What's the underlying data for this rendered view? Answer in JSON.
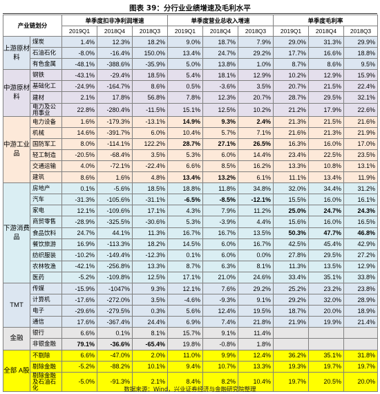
{
  "title": "图表 39：分行业业绩增速及毛利水平",
  "source": "数据来源：Wind，兴业证券经济与金融研究院整理",
  "header": {
    "chain": "产业链划分",
    "group1": "单季度扣非净利润增速",
    "group2": "单季度营业总收入增速",
    "group3": "单季度毛利率",
    "periods": [
      "2019Q1",
      "2018Q4",
      "2018Q3"
    ]
  },
  "colors": {
    "upstream": "#dce6f1",
    "midstream": "#e4dfec",
    "industrial": "#fde9d9",
    "downstream": "#daeef3",
    "tmt": "#dce6f1",
    "finance": "#e7e6e6",
    "all_a": "#ffff00"
  },
  "groups": [
    {
      "label": "上游原材料",
      "color": "upstream",
      "rows": [
        {
          "industry": "煤炭",
          "values": [
            "1.4%",
            "12.3%",
            "18.2%",
            "9.0%",
            "18.7%",
            "7.9%",
            "29.0%",
            "31.3%",
            "29.9%"
          ],
          "bold": []
        },
        {
          "industry": "石油石化",
          "values": [
            "-8.0%",
            "-16.4%",
            "150.0%",
            "13.4%",
            "24.7%",
            "29.2%",
            "17.7%",
            "16.6%",
            "18.8%"
          ],
          "bold": []
        },
        {
          "industry": "有色金属",
          "values": [
            "-48.1%",
            "-388.6%",
            "-35.9%",
            "5.0%",
            "13.8%",
            "1.0%",
            "8.7%",
            "8.6%",
            "9.5%"
          ],
          "bold": []
        }
      ]
    },
    {
      "label": "中游原材料",
      "color": "midstream",
      "rows": [
        {
          "industry": "钢铁",
          "values": [
            "-43.1%",
            "-29.4%",
            "18.5%",
            "5.4%",
            "18.1%",
            "12.9%",
            "10.2%",
            "12.9%",
            "15.9%"
          ],
          "bold": []
        },
        {
          "industry": "基础化工",
          "values": [
            "-24.9%",
            "-164.7%",
            "8.6%",
            "0.5%",
            "-3.6%",
            "3.5%",
            "20.7%",
            "21.5%",
            "22.4%"
          ],
          "bold": []
        },
        {
          "industry": "建材",
          "values": [
            "2.1%",
            "17.8%",
            "56.8%",
            "7.8%",
            "12.3%",
            "20.7%",
            "28.7%",
            "29.5%",
            "32.1%"
          ],
          "bold": []
        },
        {
          "industry": "电力及公用事业",
          "values": [
            "22.8%",
            "-280.4%",
            "-11.5%",
            "15.1%",
            "12.5%",
            "10.2%",
            "21.2%",
            "17.9%",
            "22.6%"
          ],
          "bold": []
        }
      ]
    },
    {
      "label": "中游工业品",
      "color": "industrial",
      "rows": [
        {
          "industry": "电力设备",
          "values": [
            "1.6%",
            "-179.3%",
            "-13.1%",
            "14.9%",
            "9.3%",
            "2.4%",
            "21.3%",
            "21.5%",
            "21.6%"
          ],
          "bold": [
            3,
            4,
            5
          ]
        },
        {
          "industry": "机械",
          "values": [
            "14.6%",
            "-391.7%",
            "6.0%",
            "10.4%",
            "5.7%",
            "7.1%",
            "21.6%",
            "21.3%",
            "21.9%"
          ],
          "bold": []
        },
        {
          "industry": "国防军工",
          "values": [
            "8.0%",
            "-114.1%",
            "122.2%",
            "28.7%",
            "27.1%",
            "26.5%",
            "16.3%",
            "16.0%",
            "17.0%"
          ],
          "bold": [
            3,
            4,
            5
          ]
        },
        {
          "industry": "轻工制造",
          "values": [
            "-20.5%",
            "-68.4%",
            "3.5%",
            "5.3%",
            "6.0%",
            "14.4%",
            "23.4%",
            "22.5%",
            "23.5%"
          ],
          "bold": []
        },
        {
          "industry": "交通运输",
          "values": [
            "4.0%",
            "-72.1%",
            "-22.4%",
            "6.6%",
            "8.5%",
            "16.2%",
            "13.3%",
            "10.8%",
            "13.1%"
          ],
          "bold": []
        },
        {
          "industry": "建筑",
          "values": [
            "8.6%",
            "1.6%",
            "4.8%",
            "13.4%",
            "13.2%",
            "6.1%",
            "11.1%",
            "13.4%",
            "11.9%"
          ],
          "bold": [
            3,
            4
          ]
        }
      ]
    },
    {
      "label": "下游消费品",
      "color": "downstream",
      "rows": [
        {
          "industry": "房地产",
          "values": [
            "0.1%",
            "-5.6%",
            "18.5%",
            "18.8%",
            "11.8%",
            "34.8%",
            "32.0%",
            "34.4%",
            "31.2%"
          ],
          "bold": []
        },
        {
          "industry": "汽车",
          "values": [
            "-31.3%",
            "-105.6%",
            "-31.1%",
            "-6.5%",
            "-8.5%",
            "-12.1%",
            "15.5%",
            "16.0%",
            "16.1%"
          ],
          "bold": [
            3,
            4,
            5
          ]
        },
        {
          "industry": "家电",
          "values": [
            "12.1%",
            "-109.6%",
            "17.1%",
            "4.3%",
            "7.9%",
            "11.2%",
            "25.0%",
            "24.7%",
            "24.3%"
          ],
          "bold": [
            6,
            7,
            8
          ]
        },
        {
          "industry": "商贸零售",
          "values": [
            "-28.9%",
            "-325.5%",
            "-30.6%",
            "5.3%",
            "-3.9%",
            "4.4%",
            "15.6%",
            "16.0%",
            "16.5%"
          ],
          "bold": []
        },
        {
          "industry": "食品饮料",
          "values": [
            "24.7%",
            "44.1%",
            "11.3%",
            "16.7%",
            "16.7%",
            "13.5%",
            "50.3%",
            "47.7%",
            "46.8%"
          ],
          "bold": [
            6,
            7,
            8
          ]
        },
        {
          "industry": "餐饮旅游",
          "values": [
            "16.9%",
            "-113.3%",
            "18.2%",
            "14.5%",
            "6.0%",
            "16.7%",
            "42.5%",
            "45.4%",
            "42.9%"
          ],
          "bold": []
        },
        {
          "industry": "纺织服装",
          "values": [
            "-10.2%",
            "-149.4%",
            "-12.3%",
            "0.1%",
            "6.0%",
            "0.0%",
            "27.8%",
            "29.5%",
            "27.2%"
          ],
          "bold": []
        },
        {
          "industry": "农林牧渔",
          "values": [
            "-42.1%",
            "-256.8%",
            "13.3%",
            "8.7%",
            "6.3%",
            "8.1%",
            "11.3%",
            "13.5%",
            "12.9%"
          ],
          "bold": []
        },
        {
          "industry": "医药",
          "values": [
            "-5.2%",
            "-109.8%",
            "12.5%",
            "17.1%",
            "21.0%",
            "24.6%",
            "33.4%",
            "35.1%",
            "33.8%"
          ],
          "bold": []
        }
      ]
    },
    {
      "label": "TMT",
      "color": "tmt",
      "rows": [
        {
          "industry": "传媒",
          "values": [
            "-15.9%",
            "-1047%",
            "9.3%",
            "12.1%",
            "7.6%",
            "29.2%",
            "25.2%",
            "23.2%",
            "23.8%"
          ],
          "bold": []
        },
        {
          "industry": "计算机",
          "values": [
            "-17.6%",
            "-272.0%",
            "3.5%",
            "-4.6%",
            "-9.3%",
            "9.1%",
            "29.2%",
            "32.0%",
            "28.9%"
          ],
          "bold": []
        },
        {
          "industry": "电子",
          "values": [
            "-29.6%",
            "-279.5%",
            "0.3%",
            "5.6%",
            "12.4%",
            "19.5%",
            "18.7%",
            "20.0%",
            "18.9%"
          ],
          "bold": []
        },
        {
          "industry": "通信",
          "values": [
            "17.6%",
            "-367.4%",
            "24.4%",
            "6.9%",
            "7.4%",
            "21.8%",
            "21.9%",
            "19.9%",
            "21.4%"
          ],
          "bold": []
        }
      ]
    },
    {
      "label": "金融",
      "color": "finance",
      "rows": [
        {
          "industry": "银行",
          "values": [
            "6.6%",
            "0.1%",
            "8.1%",
            "15.7%",
            "9.1%",
            "11.4%",
            "",
            "",
            ""
          ],
          "bold": []
        },
        {
          "industry": "非银金融",
          "values": [
            "79.1%",
            "-36.6%",
            "-65.4%",
            "19.8%",
            "-0.8%",
            "1.8%",
            "",
            "",
            ""
          ],
          "bold": [
            0,
            1,
            2
          ]
        }
      ]
    },
    {
      "label": "全部 A股",
      "color": "all_a",
      "rows": [
        {
          "industry": "不剔除",
          "values": [
            "6.6%",
            "-47.0%",
            "2.0%",
            "11.0%",
            "9.9%",
            "12.4%",
            "36.2%",
            "35.1%",
            "31.8%"
          ],
          "bold": []
        },
        {
          "industry": "剔除金融",
          "values": [
            "-5.2%",
            "-88.2%",
            "10.1%",
            "9.4%",
            "10.7%",
            "13.3%",
            "19.3%",
            "19.7%",
            "19.7%"
          ],
          "bold": []
        },
        {
          "industry": "剔除金融及石油石化",
          "values": [
            "-5.0%",
            "-91.3%",
            "2.1%",
            "8.4%",
            "8.2%",
            "10.4%",
            "19.7%",
            "20.5%",
            "20.0%"
          ],
          "bold": []
        }
      ]
    }
  ]
}
